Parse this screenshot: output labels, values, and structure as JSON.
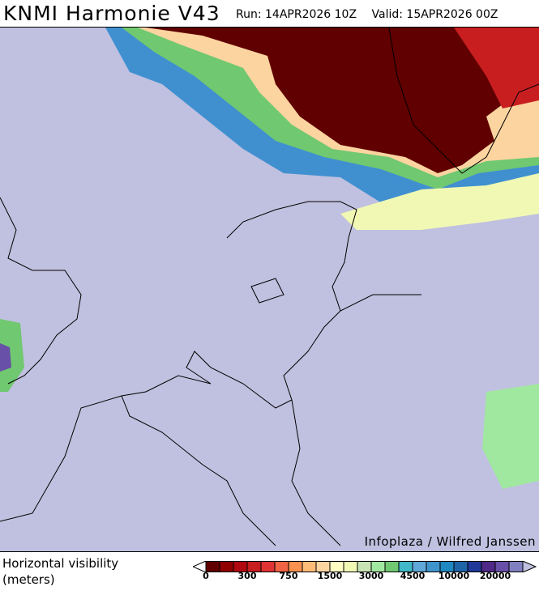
{
  "header": {
    "title": "KNMI Harmonie V43",
    "run": "Run: 14APR2026 10Z",
    "valid": "Valid: 15APR2026 00Z"
  },
  "map": {
    "background_color": "#c0c0e0",
    "credit": "Infoplaza / Wilfred Janssen"
  },
  "legend": {
    "label_line1": "Horizontal visibility",
    "label_line2": "(meters)",
    "colors": [
      "#600000",
      "#900000",
      "#b00a10",
      "#c81e20",
      "#e03434",
      "#f06444",
      "#f89050",
      "#fcbc78",
      "#fcd4a0",
      "#ffffc4",
      "#f0f8b4",
      "#c8e4b4",
      "#a0e8a0",
      "#70c870",
      "#40b8c8",
      "#60a8d8",
      "#4094cc",
      "#2088c0",
      "#2064a8",
      "#203898",
      "#502888",
      "#6850a8",
      "#8080c0"
    ],
    "under_color": "#ffffff",
    "over_color": "#c0c0e0",
    "ticks": [
      {
        "label": "0",
        "index": 0
      },
      {
        "label": "300",
        "index": 3
      },
      {
        "label": "750",
        "index": 6
      },
      {
        "label": "1500",
        "index": 9
      },
      {
        "label": "3000",
        "index": 12
      },
      {
        "label": "4500",
        "index": 15
      },
      {
        "label": "10000",
        "index": 18
      },
      {
        "label": "20000",
        "index": 21
      }
    ]
  }
}
